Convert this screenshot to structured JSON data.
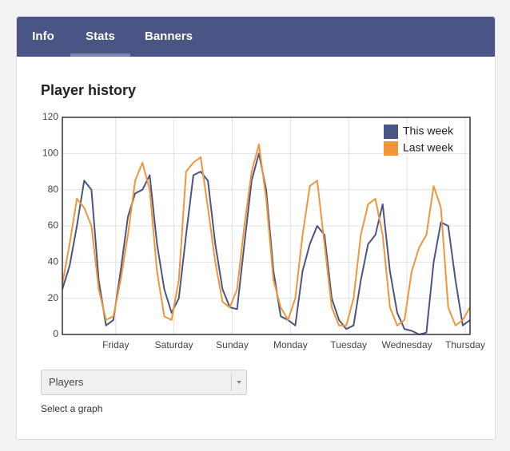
{
  "tabs": [
    "Info",
    "Stats",
    "Banners"
  ],
  "active_tab": 1,
  "chart_data": {
    "type": "line",
    "title": "Player history",
    "x": [
      0,
      3,
      6,
      9,
      12,
      15,
      18,
      21,
      24,
      27,
      30,
      33,
      36,
      39,
      42,
      45,
      48,
      51,
      54,
      57,
      60,
      63,
      66,
      69,
      72,
      75,
      78,
      81,
      84,
      87,
      90,
      93,
      96,
      99,
      102,
      105,
      108,
      111,
      114,
      117,
      120,
      123,
      126,
      129,
      132,
      135,
      138,
      141,
      144,
      147,
      150,
      153,
      156,
      159,
      162,
      165,
      168
    ],
    "xlim": [
      0,
      168
    ],
    "xticks": [
      {
        "value": 22,
        "label": "Friday"
      },
      {
        "value": 46,
        "label": "Saturday"
      },
      {
        "value": 70,
        "label": "Sunday"
      },
      {
        "value": 94,
        "label": "Monday"
      },
      {
        "value": 118,
        "label": "Tuesday"
      },
      {
        "value": 142,
        "label": "Wednesday"
      },
      {
        "value": 166,
        "label": "Thursday"
      }
    ],
    "ylim": [
      0,
      120
    ],
    "yticks": [
      0,
      20,
      40,
      60,
      80,
      100,
      120
    ],
    "grid": true,
    "legend": "top-right",
    "series": [
      {
        "name": "This week",
        "color": "#4a5584",
        "values": [
          25,
          38,
          60,
          85,
          80,
          30,
          5,
          8,
          35,
          65,
          78,
          80,
          88,
          50,
          25,
          12,
          20,
          55,
          88,
          90,
          85,
          50,
          25,
          15,
          14,
          50,
          85,
          100,
          80,
          35,
          10,
          8,
          5,
          35,
          50,
          60,
          55,
          20,
          8,
          3,
          5,
          30,
          50,
          55,
          72,
          35,
          12,
          3,
          2,
          0,
          1,
          40,
          62,
          60,
          30,
          5,
          8
        ]
      },
      {
        "name": "Last week",
        "color": "#f0963a",
        "values": [
          28,
          50,
          75,
          70,
          60,
          25,
          8,
          10,
          30,
          55,
          85,
          95,
          80,
          35,
          10,
          8,
          30,
          90,
          95,
          98,
          70,
          40,
          18,
          15,
          25,
          60,
          90,
          105,
          75,
          30,
          15,
          8,
          20,
          55,
          82,
          85,
          50,
          15,
          5,
          5,
          20,
          55,
          72,
          75,
          55,
          15,
          5,
          8,
          35,
          48,
          55,
          82,
          70,
          15,
          5,
          8,
          15
        ]
      }
    ]
  },
  "select": {
    "value": "Players",
    "hint": "Select a graph"
  }
}
